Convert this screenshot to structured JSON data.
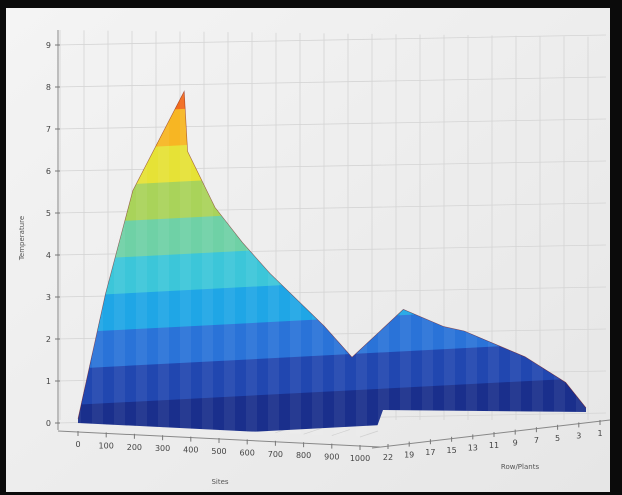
{
  "chart_data": {
    "type": "area",
    "view": "3d-surface",
    "title": "",
    "xlabel": "Sites",
    "ylabel": "Temperature",
    "zlabel": "Row/Plants",
    "y_ticks": [
      "0",
      "1",
      "2",
      "3",
      "4",
      "5",
      "6",
      "7",
      "8",
      "9"
    ],
    "x_ticks": [
      "0",
      "100",
      "200",
      "300",
      "400",
      "500",
      "600",
      "700",
      "800",
      "900",
      "1000"
    ],
    "z_ticks": [
      "22",
      "19",
      "17",
      "15",
      "13",
      "11",
      "9",
      "7",
      "5",
      "3",
      "1"
    ],
    "ylim": [
      0,
      9.5
    ],
    "grid": true,
    "front_profile": {
      "x": [
        0,
        100,
        200,
        300,
        400,
        500,
        600,
        700,
        800,
        900,
        1000
      ],
      "y": [
        0.1,
        3.1,
        5.6,
        8.0,
        6.6,
        5.3,
        4.5,
        3.8,
        3.2,
        2.6,
        1.9
      ]
    },
    "back_profile": {
      "rows": [
        22,
        19,
        17,
        15,
        13,
        11,
        9,
        7,
        5,
        3,
        1
      ],
      "y": [
        2.6,
        2.4,
        2.2,
        2.0,
        1.9,
        1.7,
        1.5,
        1.3,
        1.0,
        0.7,
        0.1
      ]
    },
    "color_scale": [
      "#1a2f8c",
      "#2147b0",
      "#2a73d8",
      "#1fa6e6",
      "#3cc6d9",
      "#6fd1a6",
      "#a9d35a",
      "#e6e236",
      "#f7b623",
      "#f26b1d",
      "#e01c1c"
    ]
  }
}
